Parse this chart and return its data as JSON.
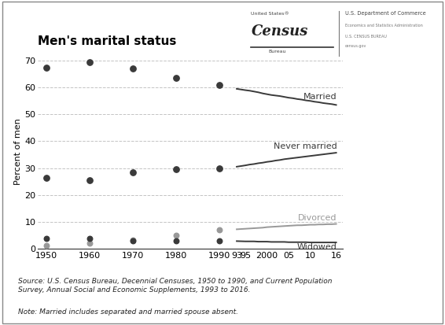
{
  "title": "Men's marital status",
  "ylabel": "Percent of men",
  "background_color": "#ffffff",
  "decennial_years": [
    1950,
    1960,
    1970,
    1980,
    1990
  ],
  "annual_years": [
    1993,
    1995,
    1996,
    1997,
    1998,
    1999,
    2000,
    2001,
    2002,
    2003,
    2004,
    2005,
    2006,
    2007,
    2008,
    2009,
    2010,
    2011,
    2012,
    2013,
    2014,
    2015,
    2016
  ],
  "married_decennial": [
    67.5,
    69.5,
    67.0,
    63.5,
    61.0
  ],
  "married_annual": [
    59.5,
    59.0,
    58.8,
    58.5,
    58.2,
    57.8,
    57.5,
    57.2,
    57.0,
    56.8,
    56.5,
    56.2,
    56.0,
    55.7,
    55.5,
    55.2,
    55.0,
    54.7,
    54.5,
    54.2,
    54.0,
    53.8,
    53.5
  ],
  "never_married_decennial": [
    26.5,
    25.5,
    28.5,
    29.5,
    30.0
  ],
  "never_married_annual": [
    30.5,
    31.0,
    31.3,
    31.5,
    31.8,
    32.0,
    32.3,
    32.5,
    32.8,
    33.0,
    33.3,
    33.5,
    33.7,
    33.9,
    34.1,
    34.3,
    34.5,
    34.7,
    34.9,
    35.1,
    35.3,
    35.5,
    35.7
  ],
  "divorced_decennial": [
    1.2,
    2.0,
    3.2,
    5.0,
    7.0
  ],
  "divorced_annual": [
    7.2,
    7.4,
    7.5,
    7.6,
    7.7,
    7.8,
    8.0,
    8.1,
    8.2,
    8.3,
    8.4,
    8.5,
    8.6,
    8.7,
    8.7,
    8.8,
    8.9,
    8.9,
    9.0,
    9.0,
    9.1,
    9.1,
    9.2
  ],
  "widowed_decennial": [
    3.8,
    3.7,
    3.0,
    2.8,
    2.8
  ],
  "widowed_annual": [
    2.8,
    2.7,
    2.7,
    2.7,
    2.6,
    2.6,
    2.6,
    2.5,
    2.5,
    2.5,
    2.5,
    2.4,
    2.4,
    2.4,
    2.4,
    2.4,
    2.3,
    2.3,
    2.3,
    2.3,
    2.3,
    2.3,
    2.3
  ],
  "married_color": "#3a3a3a",
  "never_married_color": "#3a3a3a",
  "divorced_color": "#999999",
  "widowed_color": "#3a3a3a",
  "yticks": [
    0,
    10,
    20,
    30,
    40,
    50,
    60,
    70
  ],
  "xtick_decennial_labels": [
    "1950",
    "1960",
    "1970",
    "1980",
    "1990"
  ],
  "xtick_annual_positions": [
    1993,
    1995,
    2000,
    2005,
    2010,
    2016
  ],
  "xtick_annual_labels": [
    "93",
    "95",
    "2000",
    "05",
    "10",
    "16"
  ],
  "source_text": "Source: U.S. Census Bureau, Decennial Censuses, 1950 to 1990, and Current Population\nSurvey, Annual Social and Economic Supplements, 1993 to 2016.",
  "note_text": "Note: Married includes separated and married spouse absent.",
  "grid_color": "#aaaaaa",
  "grid_alpha": 0.7
}
